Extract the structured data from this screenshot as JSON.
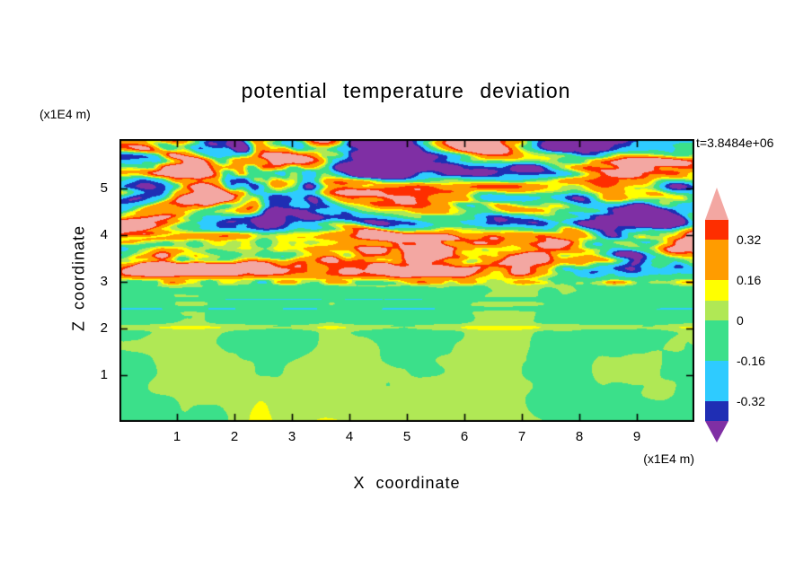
{
  "background_color": "#ffffff",
  "text_color": "#000000",
  "chart_data": {
    "type": "heatmap",
    "title": "potential temperature deviation",
    "time_label": "t=3.8484e+06",
    "xlabel": "X coordinate",
    "ylabel": "Z coordinate",
    "x_axis_units": "(x1E4 m)",
    "y_axis_units": "(x1E4 m)",
    "x_ticks": [
      "1",
      "2",
      "3",
      "4",
      "5",
      "6",
      "7",
      "8",
      "9"
    ],
    "y_ticks": [
      "5",
      "4",
      "3",
      "2",
      "1"
    ],
    "xlim": [
      0,
      10
    ],
    "ylim": [
      0,
      6.05
    ],
    "grid": false,
    "legend_position": "right-colorbar",
    "levels": [
      -0.4,
      -0.32,
      -0.16,
      0,
      0.08,
      0.16,
      0.32,
      0.4
    ],
    "colorbar": {
      "labels": [
        "0.32",
        "0.16",
        "0",
        "-0.16",
        "-0.32"
      ],
      "segments": [
        {
          "range": "> 0.4",
          "color": "#f3a7a2",
          "shape": "arrow-up"
        },
        {
          "range": "0.32 to 0.4",
          "color": "#fe2e00",
          "shape": "band"
        },
        {
          "range": "0.16 to 0.32",
          "color": "#ff9c00",
          "shape": "band"
        },
        {
          "range": "0.08 to 0.16",
          "color": "#ffff00",
          "shape": "band"
        },
        {
          "range": "0 to 0.08",
          "color": "#b0e855",
          "shape": "band"
        },
        {
          "range": "-0.16 to 0",
          "color": "#3be08a",
          "shape": "band"
        },
        {
          "range": "-0.32 to -0.16",
          "color": "#2ecbff",
          "shape": "band"
        },
        {
          "range": "-0.4 to -0.32",
          "color": "#1f2eb4",
          "shape": "band"
        },
        {
          "range": "< -0.4",
          "color": "#7f2fa4",
          "shape": "arrow-down"
        }
      ]
    },
    "field_structure": {
      "description": "Stratified turbulence snapshot: well-mixed near-zero layer below z~3 (green with yellow-green convective plumes, thin cyan streaks near z~2.4-2.7, light band at z~2), a sharp multicolour inversion line at z~3, and large-amplitude breaking gravity-wave layers above (alternating pink positive and purple negative tongues with thin red/orange/yellow/cyan/navy fringes, strongest fine structure between z~3 and 4.2).",
      "interface_height": 3.05,
      "upper_amplitude": 0.62,
      "lower_offset": -0.022
    }
  }
}
